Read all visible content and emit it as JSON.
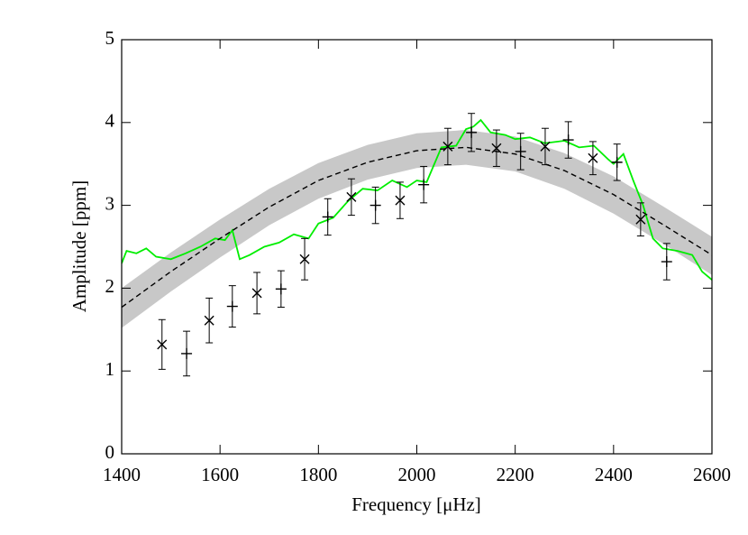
{
  "chart_data": {
    "type": "line",
    "xlabel": "Frequency [μHz]",
    "ylabel": "Amplitude [ppm]",
    "xlim": [
      1400,
      2600
    ],
    "ylim": [
      0,
      5
    ],
    "xticks": [
      1400,
      1600,
      1800,
      2000,
      2200,
      2400,
      2600
    ],
    "yticks": [
      0,
      1,
      2,
      3,
      4,
      5
    ],
    "band": {
      "color": "#c8c8c8",
      "x": [
        1400,
        1500,
        1600,
        1700,
        1800,
        1900,
        2000,
        2100,
        2200,
        2300,
        2400,
        2500,
        2600
      ],
      "lower": [
        1.52,
        1.96,
        2.37,
        2.76,
        3.08,
        3.31,
        3.45,
        3.49,
        3.41,
        3.2,
        2.9,
        2.54,
        2.16
      ],
      "upper": [
        2.0,
        2.43,
        2.83,
        3.2,
        3.51,
        3.73,
        3.87,
        3.91,
        3.83,
        3.63,
        3.35,
        2.99,
        2.62
      ]
    },
    "model": {
      "color": "#000000",
      "dashed": true,
      "x": [
        1400,
        1500,
        1600,
        1700,
        1800,
        1900,
        2000,
        2100,
        2200,
        2300,
        2400,
        2500,
        2600
      ],
      "values": [
        1.77,
        2.2,
        2.6,
        2.98,
        3.3,
        3.52,
        3.66,
        3.7,
        3.62,
        3.42,
        3.13,
        2.77,
        2.4
      ]
    },
    "observed": {
      "color": "#00ee00",
      "x": [
        1400,
        1410,
        1430,
        1450,
        1470,
        1500,
        1530,
        1560,
        1590,
        1610,
        1625,
        1640,
        1660,
        1690,
        1720,
        1750,
        1780,
        1800,
        1830,
        1860,
        1890,
        1920,
        1950,
        1980,
        2000,
        2020,
        2050,
        2080,
        2100,
        2115,
        2130,
        2150,
        2180,
        2200,
        2230,
        2260,
        2300,
        2330,
        2360,
        2390,
        2400,
        2420,
        2440,
        2460,
        2480,
        2500,
        2530,
        2560,
        2580,
        2600
      ],
      "values": [
        2.3,
        2.45,
        2.42,
        2.48,
        2.38,
        2.35,
        2.42,
        2.5,
        2.6,
        2.58,
        2.7,
        2.35,
        2.4,
        2.5,
        2.55,
        2.65,
        2.6,
        2.78,
        2.85,
        3.05,
        3.2,
        3.18,
        3.3,
        3.22,
        3.3,
        3.28,
        3.7,
        3.72,
        3.92,
        3.95,
        4.03,
        3.88,
        3.85,
        3.8,
        3.82,
        3.75,
        3.78,
        3.7,
        3.72,
        3.55,
        3.5,
        3.62,
        3.3,
        3.0,
        2.6,
        2.48,
        2.45,
        2.4,
        2.2,
        2.1
      ]
    },
    "points": [
      {
        "marker": "x",
        "color": "#000000",
        "x": [
          1482,
          1578,
          1675,
          1772,
          1867,
          1966,
          2063,
          2162,
          2261,
          2358,
          2455
        ],
        "values": [
          1.32,
          1.61,
          1.94,
          2.35,
          3.1,
          3.06,
          3.71,
          3.69,
          3.71,
          3.57,
          2.83
        ],
        "errors": [
          0.3,
          0.27,
          0.25,
          0.25,
          0.22,
          0.22,
          0.22,
          0.22,
          0.22,
          0.2,
          0.2
        ]
      },
      {
        "marker": "+",
        "color": "#000000",
        "x": [
          1532,
          1625,
          1724,
          1819,
          1916,
          2014,
          2111,
          2211,
          2308,
          2407,
          2508
        ],
        "values": [
          1.21,
          1.78,
          1.99,
          2.86,
          3.0,
          3.25,
          3.88,
          3.65,
          3.79,
          3.52,
          2.32
        ],
        "errors": [
          0.27,
          0.25,
          0.22,
          0.22,
          0.22,
          0.22,
          0.23,
          0.22,
          0.22,
          0.22,
          0.22
        ]
      }
    ]
  }
}
